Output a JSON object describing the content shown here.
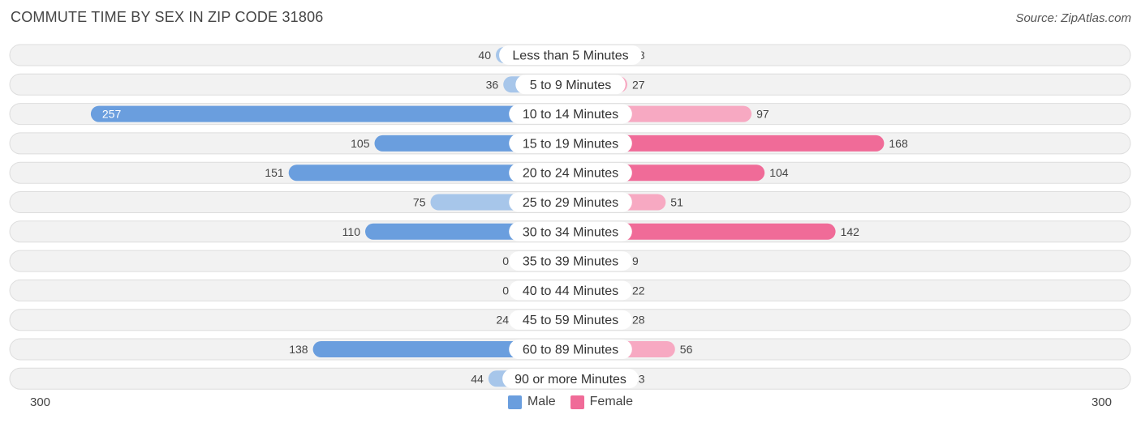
{
  "title": "COMMUTE TIME BY SEX IN ZIP CODE 31806",
  "source": "Source: ZipAtlas.com",
  "chart_data": {
    "type": "bar",
    "orientation": "horizontal-diverging",
    "categories": [
      "Less than 5 Minutes",
      "5 to 9 Minutes",
      "10 to 14 Minutes",
      "15 to 19 Minutes",
      "20 to 24 Minutes",
      "25 to 29 Minutes",
      "30 to 34 Minutes",
      "35 to 39 Minutes",
      "40 to 44 Minutes",
      "45 to 59 Minutes",
      "60 to 89 Minutes",
      "90 or more Minutes"
    ],
    "series": [
      {
        "name": "Male",
        "values": [
          40,
          36,
          257,
          105,
          151,
          75,
          110,
          0,
          0,
          24,
          138,
          44
        ]
      },
      {
        "name": "Female",
        "values": [
          18,
          27,
          97,
          168,
          104,
          51,
          142,
          9,
          22,
          28,
          56,
          23
        ]
      }
    ],
    "axis": {
      "left_label": "300",
      "right_label": "300",
      "max": 300
    },
    "legend_position": "bottom-center"
  },
  "legend": {
    "male": "Male",
    "female": "Female"
  },
  "colors": {
    "male_strong": "#6a9ede",
    "male_light": "#a7c6ea",
    "female_strong": "#f06b98",
    "female_light": "#f7a9c2",
    "row_bg": "#f2f2f2",
    "row_border": "#dddddd"
  }
}
